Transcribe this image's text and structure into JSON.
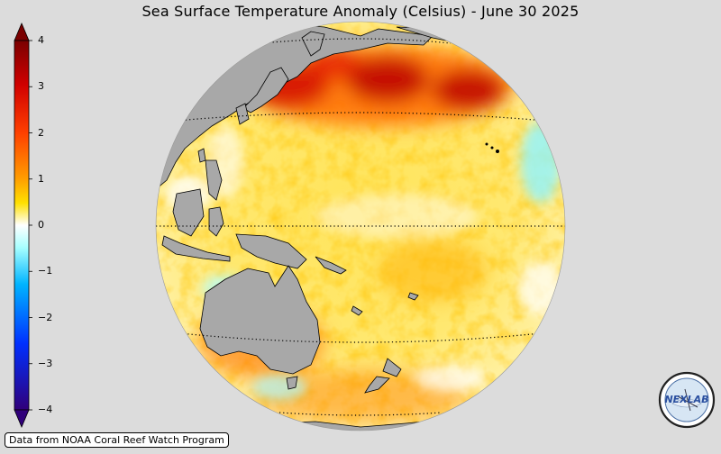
{
  "title": "Sea Surface Temperature Anomaly (Celsius) - June 30 2025",
  "colorbar": {
    "ticks": [
      "4",
      "3",
      "2",
      "1",
      "0",
      "−1",
      "−2",
      "−3",
      "−4"
    ],
    "colors": [
      "#7a0000",
      "#c80000",
      "#ff2200",
      "#ff8c00",
      "#ffd000",
      "#ffff30",
      "#ffffff",
      "#70ffff",
      "#00aaff",
      "#0030ff",
      "#2a007a"
    ]
  },
  "map": {
    "projection": "orthographic",
    "center": "western Pacific",
    "land_color": "#a8a8a8",
    "ocean_colors": {
      "warm": "#ffd400",
      "hot": "#ff6a00",
      "very_hot": "#cc0000",
      "neutral": "#ffffff",
      "cool": "#a8ffff"
    }
  },
  "credit": "Data from NOAA Coral Reef Watch Program",
  "logo": {
    "text": "NEXLAB",
    "icon": "nexlab-logo-icon"
  }
}
